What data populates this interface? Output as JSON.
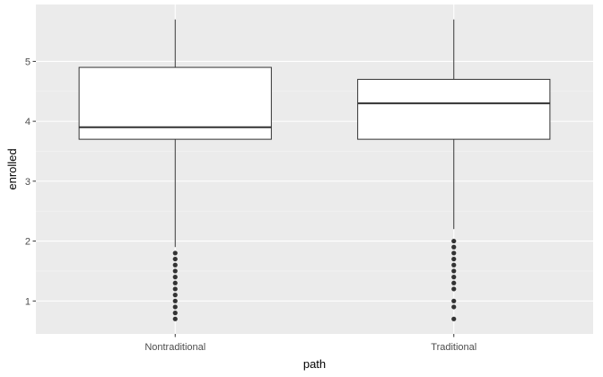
{
  "chart_data": {
    "type": "box",
    "xlabel": "path",
    "ylabel": "enrolled",
    "ylim": [
      0.45,
      5.95
    ],
    "yticks": [
      1,
      2,
      3,
      4,
      5
    ],
    "categories": [
      "Nontraditional",
      "Traditional"
    ],
    "boxes": [
      {
        "name": "Nontraditional",
        "whisker_low": 1.9,
        "q1": 3.7,
        "median": 3.9,
        "q3": 4.9,
        "whisker_high": 5.7,
        "outliers": [
          0.7,
          0.8,
          0.9,
          1.0,
          1.1,
          1.2,
          1.3,
          1.4,
          1.5,
          1.6,
          1.7,
          1.8
        ]
      },
      {
        "name": "Traditional",
        "whisker_low": 2.2,
        "q1": 3.7,
        "median": 4.3,
        "q3": 4.7,
        "whisker_high": 5.7,
        "outliers": [
          0.7,
          0.9,
          1.0,
          1.2,
          1.3,
          1.4,
          1.5,
          1.6,
          1.7,
          1.8,
          1.9,
          2.0
        ]
      }
    ],
    "grid": true,
    "legend": "none",
    "colors": {
      "panel": "#ebebeb",
      "grid_major": "#ffffff",
      "grid_minor": "#f5f5f5",
      "box_fill": "#ffffff",
      "box_line": "#333333",
      "outlier": "#333333"
    }
  }
}
